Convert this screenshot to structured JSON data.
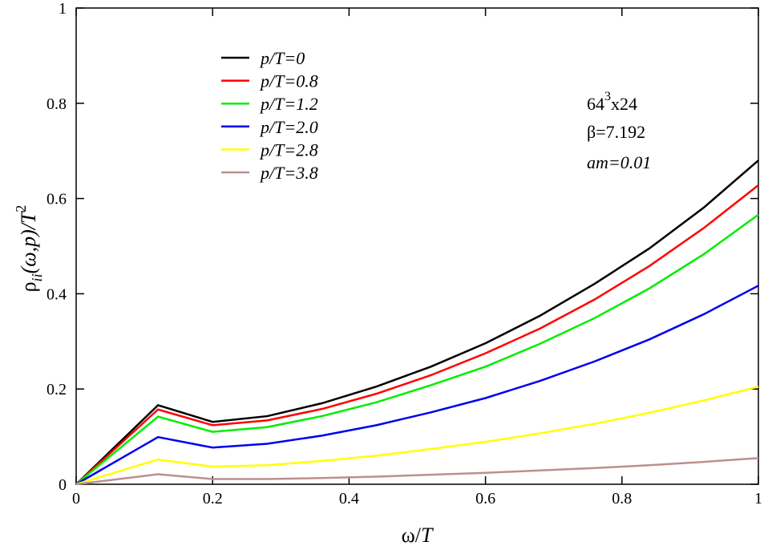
{
  "chart_data": {
    "type": "line",
    "xlabel": {
      "omega": "ω",
      "slash": "/",
      "T": "T"
    },
    "ylabel": {
      "rho": "ρ",
      "sub": "ii",
      "mid": "(ω,p)/T",
      "sup": "2"
    },
    "annotations": {
      "lattice": {
        "base": "64",
        "sup": "3",
        "rest": "x24"
      },
      "beta": "β=7.192",
      "mass": "am=0.01"
    },
    "x": [
      0,
      0.12,
      0.2,
      0.28,
      0.36,
      0.44,
      0.52,
      0.6,
      0.68,
      0.76,
      0.84,
      0.92,
      1.0
    ],
    "series": [
      {
        "name": "p/T=0",
        "color": "#000000",
        "values": [
          0,
          0.166,
          0.131,
          0.143,
          0.17,
          0.205,
          0.247,
          0.296,
          0.354,
          0.421,
          0.495,
          0.581,
          0.68
        ]
      },
      {
        "name": "p/T=0.8",
        "color": "#ff0000",
        "values": [
          0,
          0.157,
          0.124,
          0.134,
          0.158,
          0.19,
          0.229,
          0.275,
          0.327,
          0.388,
          0.458,
          0.538,
          0.628
        ]
      },
      {
        "name": "p/T=1.2",
        "color": "#00ee00",
        "values": [
          0,
          0.142,
          0.11,
          0.12,
          0.143,
          0.172,
          0.208,
          0.247,
          0.295,
          0.349,
          0.411,
          0.483,
          0.566
        ]
      },
      {
        "name": "p/T=2.0",
        "color": "#0000ee",
        "values": [
          0,
          0.099,
          0.077,
          0.085,
          0.102,
          0.124,
          0.151,
          0.181,
          0.217,
          0.258,
          0.304,
          0.357,
          0.417
        ]
      },
      {
        "name": "p/T=2.8",
        "color": "#ffff00",
        "values": [
          0,
          0.052,
          0.037,
          0.04,
          0.049,
          0.06,
          0.074,
          0.089,
          0.107,
          0.127,
          0.15,
          0.176,
          0.205
        ]
      },
      {
        "name": "p/T=3.8",
        "color": "#bc8f8f",
        "values": [
          0,
          0.021,
          0.011,
          0.011,
          0.013,
          0.016,
          0.02,
          0.024,
          0.029,
          0.034,
          0.04,
          0.047,
          0.055
        ]
      }
    ],
    "xlim": [
      0,
      1
    ],
    "ylim": [
      0,
      1
    ],
    "xticks": [
      0,
      0.2,
      0.4,
      0.6,
      0.8,
      1
    ],
    "yticks": [
      0,
      0.2,
      0.4,
      0.6,
      0.8,
      1
    ],
    "grid": false
  }
}
